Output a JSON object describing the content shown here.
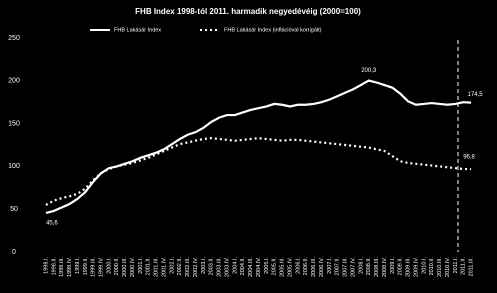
{
  "chart_data": {
    "type": "line",
    "title": "FHB Index 1998-tól 2011. harmadik negyedévéig (2000=100)",
    "categories": [
      "1998.I.",
      "1998.II.",
      "1998.III.",
      "1998.IV.",
      "1999.I.",
      "1999.II.",
      "1999.III.",
      "1999.IV.",
      "2000.I.",
      "2000.II.",
      "2000.III.",
      "2000.IV.",
      "2001.I.",
      "2001.II.",
      "2001.III.",
      "2001.IV.",
      "2002.I.",
      "2002.II.",
      "2002.III.",
      "2002.IV.",
      "2003.I.",
      "2003.II.",
      "2003.III.",
      "2003.IV.",
      "2004.I.",
      "2004.II.",
      "2004.III.",
      "2004.IV.",
      "2005.I.",
      "2005.II.",
      "2005.III.",
      "2005.IV.",
      "2006.I.",
      "2006.II.",
      "2006.III.",
      "2006.IV.",
      "2007.I.",
      "2007.II.",
      "2007.III.",
      "2007.IV.",
      "2008.I.",
      "2008.II.",
      "2008.III.",
      "2008.IV.",
      "2009.I.",
      "2009.II.",
      "2009.III.",
      "2009.IV.",
      "2010.I.",
      "2010.II.",
      "2010.III.",
      "2010.IV.",
      "2011.I.",
      "2011.II.",
      "2011.III."
    ],
    "series": [
      {
        "name": "FHB Lakásár Index",
        "color": "#ffffff",
        "dash": false,
        "values": [
          45.6,
          48,
          52,
          56,
          62,
          70,
          82,
          92,
          98,
          100,
          103,
          106,
          110,
          113,
          116,
          120,
          126,
          132,
          137,
          140,
          145,
          152,
          157,
          160,
          160,
          163,
          166,
          168,
          170,
          173,
          172,
          170,
          172,
          172,
          173,
          175,
          178,
          182,
          186,
          190,
          195,
          200.3,
          198,
          195,
          192,
          185,
          176,
          172,
          173,
          174,
          173,
          172,
          173,
          175,
          174.5
        ]
      },
      {
        "name": "FHB Lakásár Index (inflációval korrigált)",
        "color": "#ffffff",
        "dash": true,
        "values": [
          55,
          60,
          63,
          65,
          68,
          74,
          84,
          92,
          97,
          100,
          102,
          104,
          107,
          110,
          114,
          118,
          122,
          126,
          128,
          130,
          132,
          133,
          132,
          131,
          130,
          131,
          132,
          133,
          132,
          131,
          130,
          131,
          131,
          130,
          129,
          128,
          127,
          126,
          125,
          124,
          123,
          122,
          120,
          118,
          112,
          106,
          104,
          103,
          102,
          101,
          100,
          99,
          98,
          97,
          96.8
        ]
      }
    ],
    "annotations": [
      "45,6",
      "200,3",
      "174,5",
      "96,8"
    ],
    "ylim": [
      0,
      250
    ],
    "yticks": [
      0,
      50,
      100,
      150,
      200,
      250
    ],
    "grid": false
  }
}
